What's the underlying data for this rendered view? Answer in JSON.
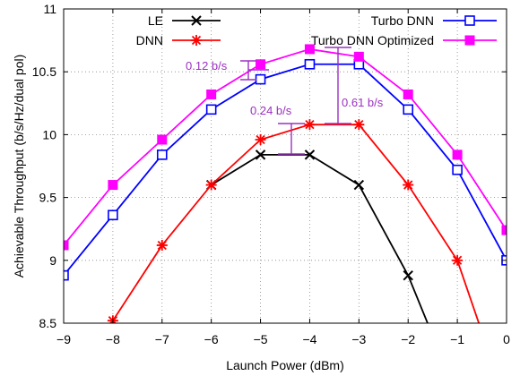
{
  "chart_data": {
    "type": "line",
    "xlabel": "Launch Power (dBm)",
    "ylabel": "Achievable Throughput (b/s/Hz/dual pol)",
    "xlim": [
      -9,
      0
    ],
    "ylim": [
      8.5,
      11
    ],
    "x_ticks": [
      "-9",
      "-8",
      "-7",
      "-6",
      "-5",
      "-4",
      "-3",
      "-2",
      "-1",
      "0"
    ],
    "y_ticks": [
      "8.5",
      "9",
      "9.5",
      "10",
      "10.5",
      "11"
    ],
    "grid": true,
    "series": [
      {
        "name": "LE",
        "color": "#000000",
        "marker": "x",
        "x": [
          -6,
          -5,
          -4,
          -3,
          -2,
          -1.5
        ],
        "y": [
          9.6,
          9.84,
          9.84,
          9.6,
          8.88,
          8.4
        ]
      },
      {
        "name": "DNN",
        "color": "#ff0000",
        "marker": "star",
        "x": [
          -8.5,
          -8,
          -7,
          -6,
          -5,
          -4,
          -3,
          -2,
          -1,
          -0.3
        ],
        "y": [
          8.25,
          8.52,
          9.12,
          9.6,
          9.96,
          10.08,
          10.08,
          9.6,
          9.0,
          8.2
        ]
      },
      {
        "name": "Turbo DNN",
        "color": "#0000ff",
        "marker": "square-open",
        "x": [
          -9,
          -8,
          -7,
          -6,
          -5,
          -4,
          -3,
          -2,
          -1,
          0
        ],
        "y": [
          8.88,
          9.36,
          9.84,
          10.2,
          10.44,
          10.56,
          10.56,
          10.2,
          9.72,
          9.0
        ]
      },
      {
        "name": "Turbo DNN Optimized",
        "color": "#ff00ff",
        "marker": "square-filled",
        "x": [
          -9,
          -8,
          -7,
          -6,
          -5,
          -4,
          -3,
          -2,
          -1,
          0
        ],
        "y": [
          9.12,
          9.6,
          9.96,
          10.32,
          10.56,
          10.68,
          10.62,
          10.32,
          9.84,
          9.24
        ]
      }
    ],
    "annotations": [
      {
        "text": "0.12 b/s",
        "color": "#9b30c0"
      },
      {
        "text": "0.24 b/s",
        "color": "#9b30c0"
      },
      {
        "text": "0.61 b/s",
        "color": "#9b30c0"
      }
    ]
  }
}
